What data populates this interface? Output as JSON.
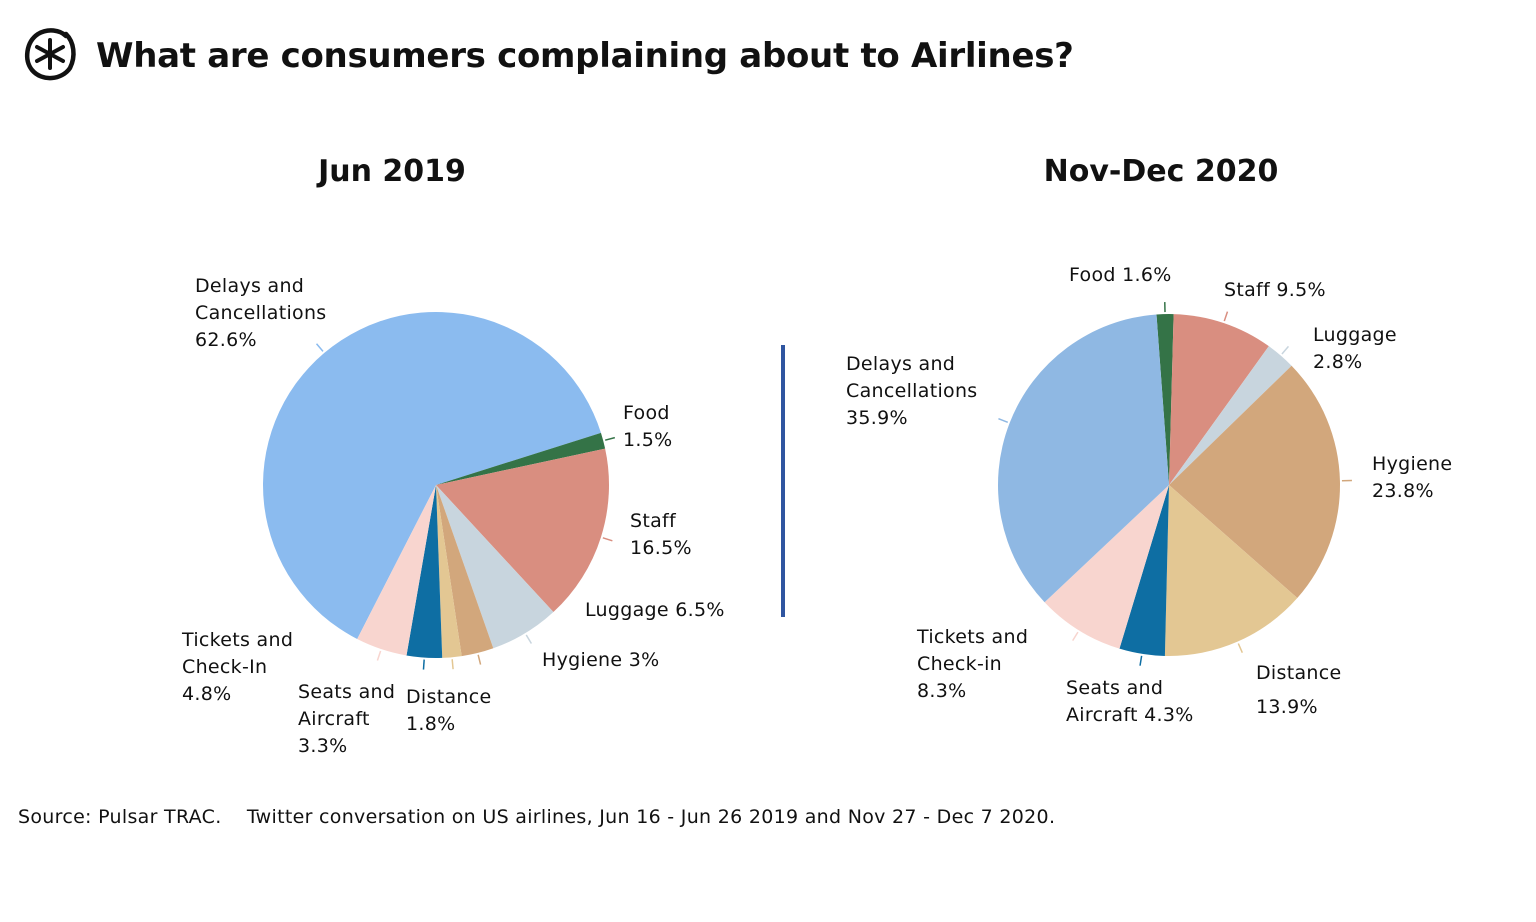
{
  "title": "What are consumers complaining about to Airlines?",
  "source": "Source: Pulsar TRAC.    Twitter conversation on US airlines, Jun 16 - Jun 26 2019 and Nov 27 - Dec 7 2020.",
  "chart_data": [
    {
      "type": "pie",
      "title": "Jun 2019",
      "categories": [
        "Delays and Cancellations",
        "Food",
        "Staff",
        "Luggage",
        "Hygiene",
        "Distance",
        "Seats and Aircraft",
        "Tickets and Check-In"
      ],
      "values": [
        62.6,
        1.5,
        16.5,
        6.5,
        3,
        1.8,
        3.3,
        4.8
      ],
      "labels": [
        "Delays and\nCancellations\n62.6%",
        "Food\n1.5%",
        "Staff\n16.5%",
        "Luggage  6.5%",
        "Hygiene  3%",
        "Distance\n1.8%",
        "Seats and\nAircraft\n3.3%",
        "Tickets and\nCheck-In\n4.8%"
      ],
      "colors": [
        "#8bbbef",
        "#347347",
        "#d98e80",
        "#c8d5de",
        "#d2a77c",
        "#e3c793",
        "#0e6ea3",
        "#f8d5cf"
      ]
    },
    {
      "type": "pie",
      "title": "Nov-Dec 2020",
      "categories": [
        "Food",
        "Staff",
        "Luggage",
        "Hygiene",
        "Distance",
        "Seats and Aircraft",
        "Tickets and Check-in",
        "Delays and Cancellations"
      ],
      "values": [
        1.6,
        9.5,
        2.8,
        23.8,
        13.9,
        4.3,
        8.3,
        35.9
      ],
      "labels": [
        "Food 1.6%",
        "Staff  9.5%",
        "Luggage\n 2.8%",
        "Hygiene\n23.8%",
        "Distance\n\n13.9%",
        "Seats and\nAircraft 4.3%",
        "Tickets and\nCheck-in\n8.3%",
        "Delays and\nCancellations\n35.9%"
      ],
      "colors": [
        "#347347",
        "#d98e80",
        "#c8d5de",
        "#d2a77c",
        "#e3c793",
        "#0e6ea3",
        "#f8d5cf",
        "#8fb8e3"
      ]
    }
  ],
  "divider_color": "#2f55a0"
}
